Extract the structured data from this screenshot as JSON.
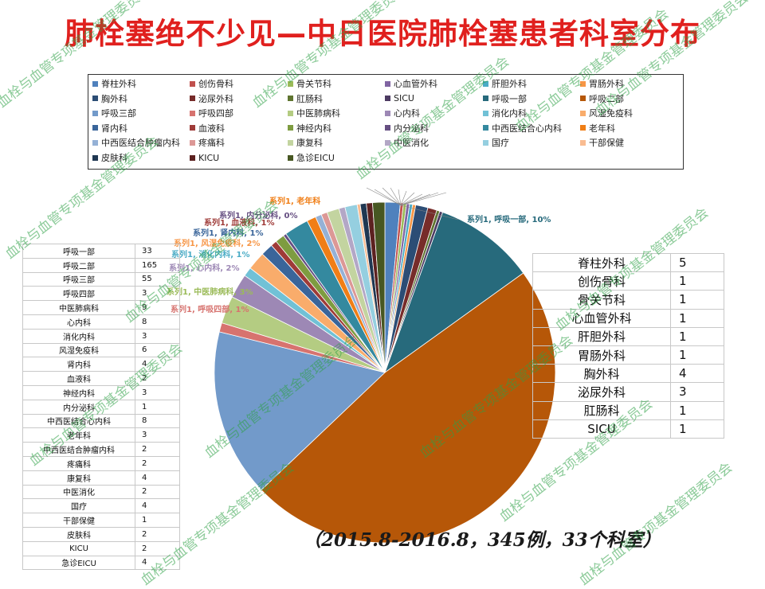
{
  "title": "肺栓塞绝不少见—中日医院肺栓塞患者科室分布",
  "footnote": "（2015.8-2016.8，345例，33个科室）",
  "watermark": "血栓与血管专项基金管理委员会",
  "chart_data": {
    "type": "pie",
    "series_name": "系列1",
    "categories": [
      "脊柱外科",
      "创伤骨科",
      "骨关节科",
      "心血管外科",
      "肝胆外科",
      "胃肠外科",
      "胸外科",
      "泌尿外科",
      "肛肠科",
      "SICU",
      "呼吸一部",
      "呼吸二部",
      "呼吸三部",
      "呼吸四部",
      "中医肺病科",
      "心内科",
      "消化内科",
      "风湿免疫科",
      "肾内科",
      "血液科",
      "神经内科",
      "内分泌科",
      "中西医结合心内科",
      "老年科",
      "中西医结合肿瘤内科",
      "疼痛科",
      "康复科",
      "中医消化",
      "国疗",
      "干部保健",
      "皮肤科",
      "KICU",
      "急诊EICU"
    ],
    "values": [
      5,
      1,
      1,
      1,
      1,
      1,
      4,
      3,
      1,
      1,
      33,
      165,
      55,
      3,
      9,
      8,
      3,
      6,
      4,
      2,
      3,
      1,
      8,
      3,
      2,
      2,
      4,
      2,
      4,
      1,
      2,
      2,
      4
    ],
    "colors": [
      "#4f81bd",
      "#c0504d",
      "#9bbb59",
      "#8064a2",
      "#4bacc6",
      "#f79646",
      "#2c4d75",
      "#772c2a",
      "#5f7530",
      "#4d3b62",
      "#276a7c",
      "#b65708",
      "#729aca",
      "#d7736f",
      "#b4cc82",
      "#9d88b5",
      "#71c1d6",
      "#f9ac6b",
      "#3a659a",
      "#9f3b38",
      "#7e9c40",
      "#664f82",
      "#34899f",
      "#f07e16",
      "#95b1d6",
      "#dc9896",
      "#c3d4a0",
      "#b3a7c6",
      "#95cfe0",
      "#f9bc91",
      "#1f3752",
      "#5c2120",
      "#475722"
    ],
    "data_labels": [
      {
        "text": "系列1, 呼吸一部, 10%",
        "color": "#276a7c"
      },
      {
        "text": "系列1, 呼吸四部, 1%",
        "color": "#d7736f"
      },
      {
        "text": "系列1, 中医肺病科, 3%",
        "color": "#9bbb59"
      },
      {
        "text": "系列1, 心内科, 2%",
        "color": "#9d88b5"
      },
      {
        "text": "系列1, 消化内科, 1%",
        "color": "#4bacc6"
      },
      {
        "text": "系列1, 风湿免疫科, 2%",
        "color": "#f79646"
      },
      {
        "text": "系列1, 肾内科, 1%",
        "color": "#3a659a"
      },
      {
        "text": "系列1, 血液科, 1%",
        "color": "#9f3b38"
      },
      {
        "text": "系列1, 内分泌科, 0%",
        "color": "#664f82"
      },
      {
        "text": "系列1, 老年科",
        "color": "#f07e16"
      }
    ]
  },
  "left_table": [
    [
      "呼吸一部",
      "33"
    ],
    [
      "呼吸二部",
      "165"
    ],
    [
      "呼吸三部",
      "55"
    ],
    [
      "呼吸四部",
      "3"
    ],
    [
      "中医肺病科",
      "9"
    ],
    [
      "心内科",
      "8"
    ],
    [
      "消化内科",
      "3"
    ],
    [
      "风湿免疫科",
      "6"
    ],
    [
      "肾内科",
      "4"
    ],
    [
      "血液科",
      "2"
    ],
    [
      "神经内科",
      "3"
    ],
    [
      "内分泌科",
      "1"
    ],
    [
      "中西医结合心内科",
      "8"
    ],
    [
      "老年科",
      "3"
    ],
    [
      "中西医结合肿瘤内科",
      "2"
    ],
    [
      "疼痛科",
      "2"
    ],
    [
      "康复科",
      "4"
    ],
    [
      "中医消化",
      "2"
    ],
    [
      "国疗",
      "4"
    ],
    [
      "干部保健",
      "1"
    ],
    [
      "皮肤科",
      "2"
    ],
    [
      "KICU",
      "2"
    ],
    [
      "急诊EICU",
      "4"
    ]
  ],
  "right_table": [
    [
      "脊柱外科",
      "5"
    ],
    [
      "创伤骨科",
      "1"
    ],
    [
      "骨关节科",
      "1"
    ],
    [
      "心血管外科",
      "1"
    ],
    [
      "肝胆外科",
      "1"
    ],
    [
      "胃肠外科",
      "1"
    ],
    [
      "胸外科",
      "4"
    ],
    [
      "泌尿外科",
      "3"
    ],
    [
      "肛肠科",
      "1"
    ],
    [
      "SICU",
      "1"
    ]
  ]
}
